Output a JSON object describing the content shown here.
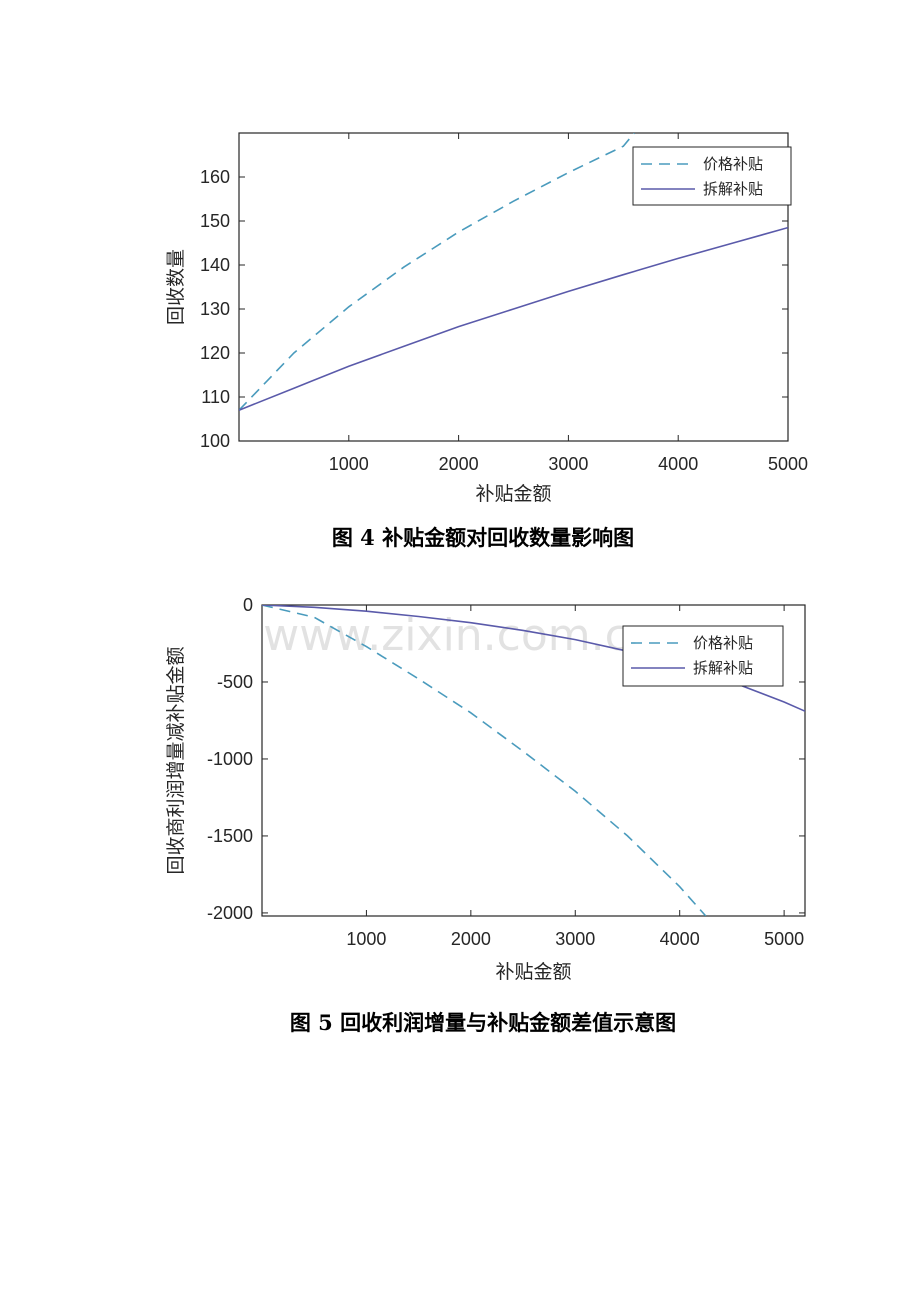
{
  "watermark": "www.zixin.com.cn",
  "colors": {
    "price_subsidy": "#4a9bbd",
    "dismantle_subsidy": "#5a5aaa",
    "axis": "#262626"
  },
  "chart_data": [
    {
      "type": "line",
      "caption": "图 4   补贴金额对回收数量影响图",
      "xlabel": "补贴金额",
      "ylabel": "回收数量",
      "xlim": [
        0,
        5000
      ],
      "ylim": [
        100,
        170
      ],
      "xticks": [
        "1000",
        "2000",
        "3000",
        "4000",
        "5000"
      ],
      "yticks": [
        "100",
        "110",
        "120",
        "130",
        "140",
        "150",
        "160"
      ],
      "legend_position": "top-right",
      "series": [
        {
          "name": "价格补贴",
          "style": "dashed",
          "x": [
            0,
            500,
            1000,
            1500,
            2000,
            2500,
            3000,
            3500,
            3600
          ],
          "y": [
            107,
            120,
            130.5,
            139.5,
            147.5,
            154.5,
            161,
            167,
            170
          ]
        },
        {
          "name": "拆解补贴",
          "style": "solid",
          "x": [
            0,
            500,
            1000,
            1500,
            2000,
            2500,
            3000,
            3500,
            4000,
            4500,
            5000
          ],
          "y": [
            107,
            112,
            117,
            121.5,
            126,
            130,
            134,
            137.8,
            141.5,
            145,
            148.5
          ]
        }
      ]
    },
    {
      "type": "line",
      "caption": "图 5   回收利润增量与补贴金额差值示意图",
      "xlabel": "补贴金额",
      "ylabel": "回收商利润增量减补贴金额",
      "xlim": [
        0,
        5200
      ],
      "ylim": [
        -2020,
        0
      ],
      "xticks": [
        "1000",
        "2000",
        "3000",
        "4000",
        "5000"
      ],
      "yticks": [
        "0",
        "-500",
        "-1000",
        "-1500",
        "-2000"
      ],
      "legend_position": "top-right",
      "series": [
        {
          "name": "价格补贴",
          "style": "dashed",
          "x": [
            0,
            500,
            1000,
            1500,
            2000,
            2500,
            3000,
            3500,
            4000,
            4250
          ],
          "y": [
            0,
            -80,
            -270,
            -480,
            -700,
            -950,
            -1210,
            -1500,
            -1830,
            -2020
          ]
        },
        {
          "name": "拆解补贴",
          "style": "solid",
          "x": [
            0,
            500,
            1000,
            1500,
            2000,
            2500,
            3000,
            3500,
            4000,
            4500,
            5000,
            5200
          ],
          "y": [
            0,
            -15,
            -40,
            -75,
            -115,
            -165,
            -225,
            -300,
            -390,
            -500,
            -630,
            -690
          ]
        }
      ]
    }
  ]
}
